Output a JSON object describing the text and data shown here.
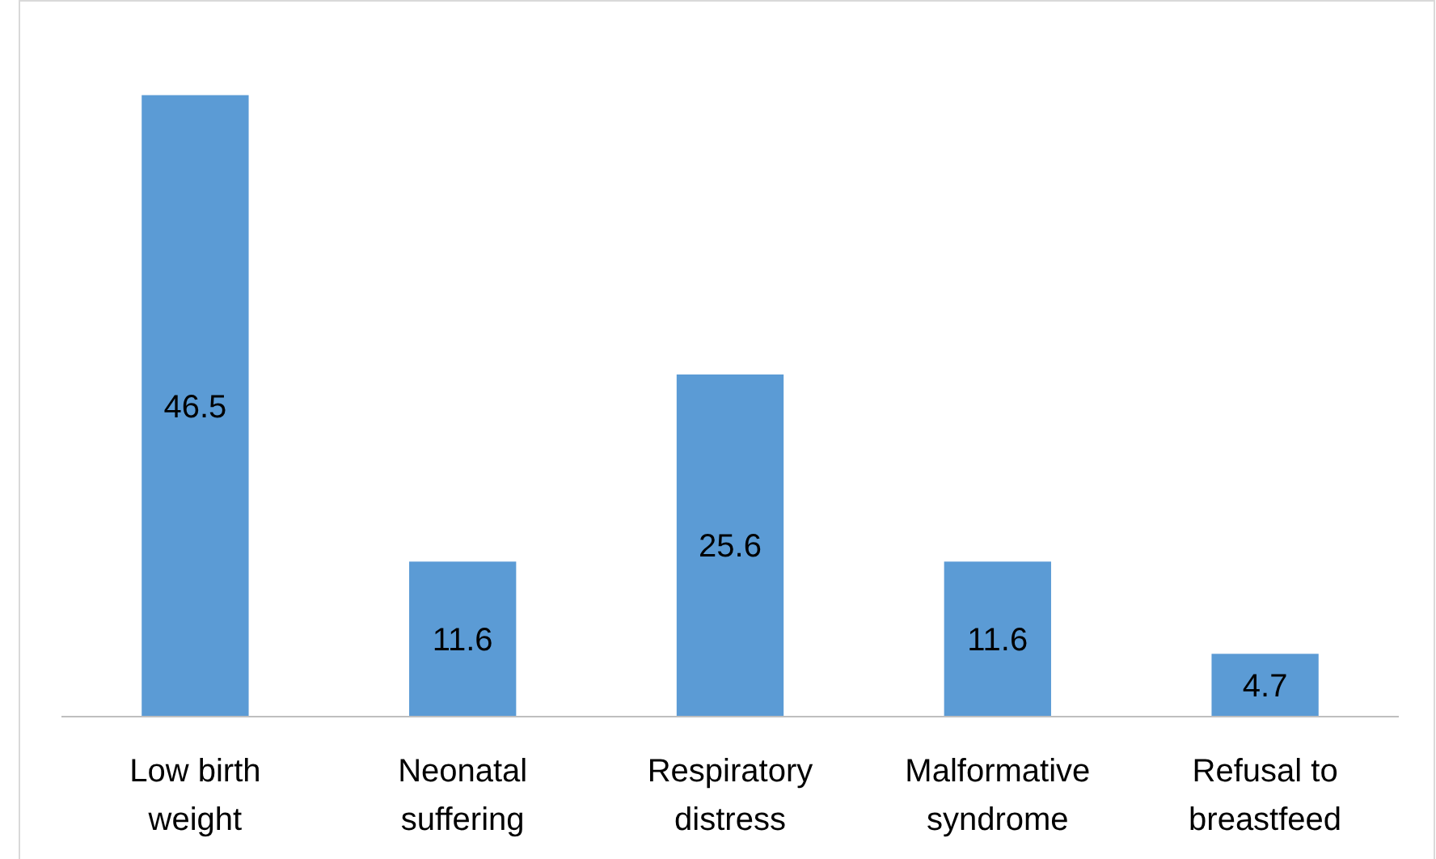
{
  "chart_data": {
    "type": "bar",
    "categories": [
      "Low birth weight",
      "Neonatal suffering",
      "Respiratory distress",
      "Malformative syndrome",
      "Refusal to breastfeed"
    ],
    "values": [
      46.5,
      11.6,
      25.6,
      11.6,
      4.7
    ],
    "color": "#5b9bd5",
    "data_labels": true
  }
}
